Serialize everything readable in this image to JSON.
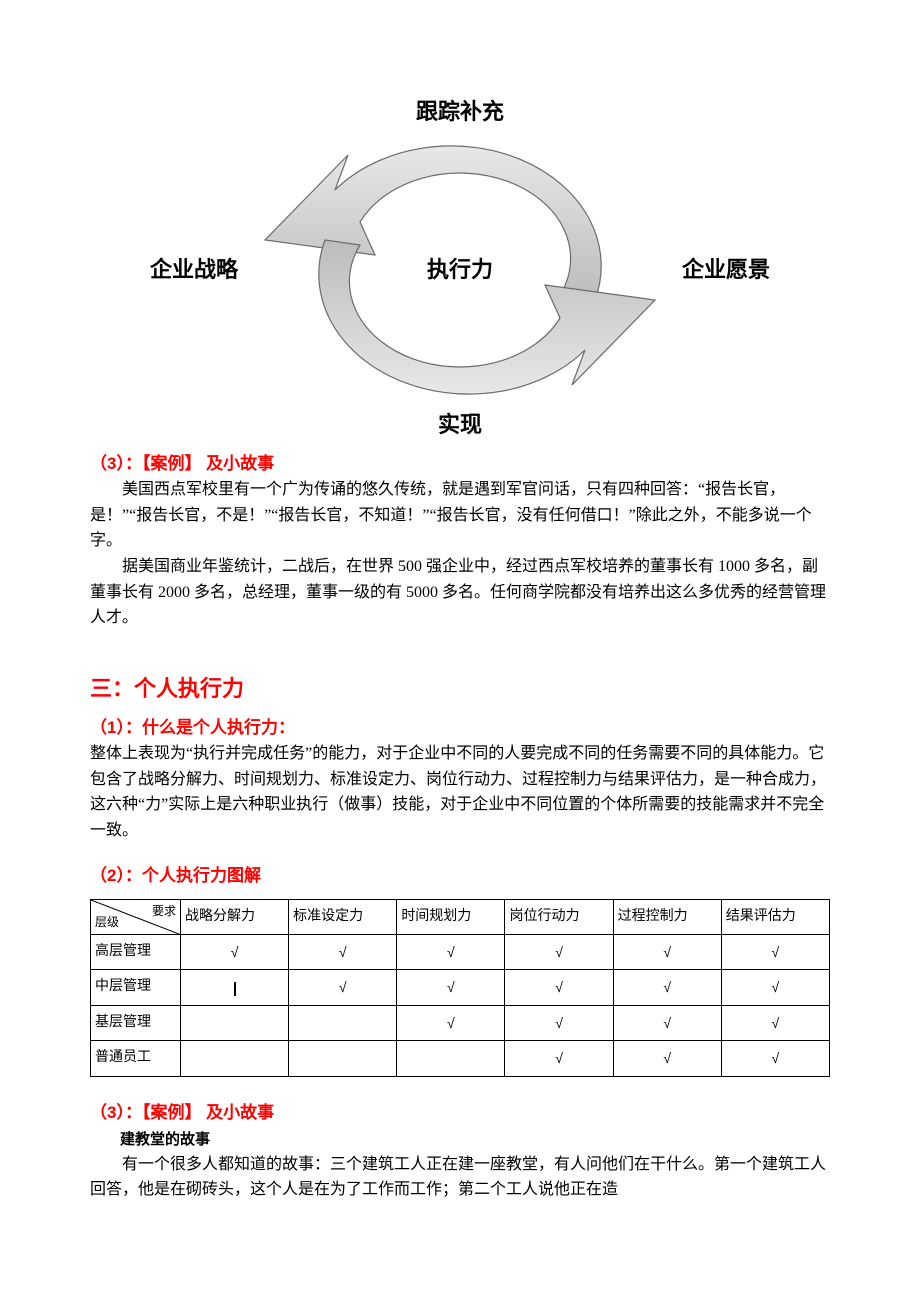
{
  "diagram": {
    "top": "跟踪补充",
    "left": "企业战略",
    "center": "执行力",
    "right": "企业愿景",
    "bottom": "实现",
    "arrow_fill": "#d7d7d7",
    "arrow_stroke": "#666666",
    "label_color": "#000000",
    "label_fontsize": 22
  },
  "sec1": {
    "heading": "（3）：【案例】  及小故事",
    "p1": "美国西点军校里有一个广为传诵的悠久传统，就是遇到军官问话，只有四种回答：“报告长官，是！”“报告长官，不是！”“报告长官，不知道！”“报告长官，没有任何借口！”除此之外，不能多说一个字。",
    "p2": "据美国商业年鉴统计，二战后，在世界 500 强企业中，经过西点军校培养的董事长有 1000 多名，副董事长有 2000 多名，总经理，董事一级的有 5000 多名。任何商学院都没有培养出这么多优秀的经营管理人才。"
  },
  "sec2": {
    "title": "三：个人执行力",
    "sub1": "（1）：什么是个人执行力：",
    "desc": "整体上表现为“执行并完成任务”的能力，对于企业中不同的人要完成不同的任务需要不同的具体能力。它包含了战略分解力、时间规划力、标准设定力、岗位行动力、过程控制力与结果评估力，是一种合成力，这六种“力”实际上是六种职业执行（做事）技能，对于企业中不同位置的个体所需要的技能需求并不完全一致。",
    "sub2": "（2）：个人执行力图解"
  },
  "table": {
    "diag_tl": "要求",
    "diag_br": "层级",
    "columns": [
      "战略分解力",
      "标准设定力",
      "时间规划力",
      "岗位行动力",
      "过程控制力",
      "结果评估力"
    ],
    "rows": [
      {
        "label": "高层管理",
        "cells": [
          "√",
          "√",
          "√",
          "√",
          "√",
          "√"
        ]
      },
      {
        "label": "中层管理",
        "cells": [
          "|",
          "√",
          "√",
          "√",
          "√",
          "√"
        ]
      },
      {
        "label": "基层管理",
        "cells": [
          "",
          "",
          "√",
          "√",
          "√",
          "√"
        ]
      },
      {
        "label": "普通员工",
        "cells": [
          "",
          "",
          "",
          "√",
          "√",
          "√"
        ]
      }
    ],
    "check_mark": "√"
  },
  "sec3": {
    "heading": "（3）：【案例】 及小故事",
    "story_title": "建教堂的故事",
    "p1": "有一个很多人都知道的故事：三个建筑工人正在建一座教堂，有人问他们在干什么。第一个建筑工人回答，他是在砌砖头，这个人是在为了工作而工作；第二个工人说他正在造"
  },
  "colors": {
    "red": "#ff0000",
    "black": "#000000",
    "bg": "#ffffff"
  }
}
